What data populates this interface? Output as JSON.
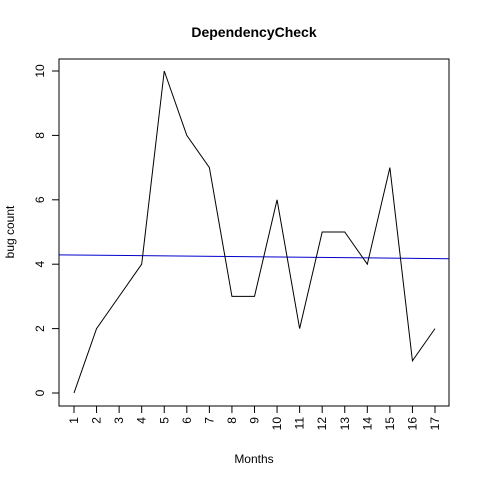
{
  "chart_data": {
    "type": "line",
    "title": "DependencyCheck",
    "xlabel": "Months",
    "ylabel": "bug count",
    "categories": [
      "1",
      "2",
      "3",
      "4",
      "5",
      "6",
      "7",
      "8",
      "9",
      "10",
      "11",
      "12",
      "13",
      "14",
      "15",
      "16",
      "17"
    ],
    "y_ticks": [
      "0",
      "2",
      "4",
      "6",
      "8",
      "10"
    ],
    "ylim": [
      0,
      10
    ],
    "series": [
      {
        "values": [
          0,
          2,
          3,
          4,
          10,
          8,
          7,
          3,
          3,
          6,
          2,
          5,
          5,
          4,
          7,
          1,
          2
        ],
        "color": "#000000"
      }
    ],
    "trend_line": {
      "start_value": 4.29,
      "end_value": 4.17,
      "color": "#0000cc"
    },
    "grid": false,
    "legend": "none"
  }
}
